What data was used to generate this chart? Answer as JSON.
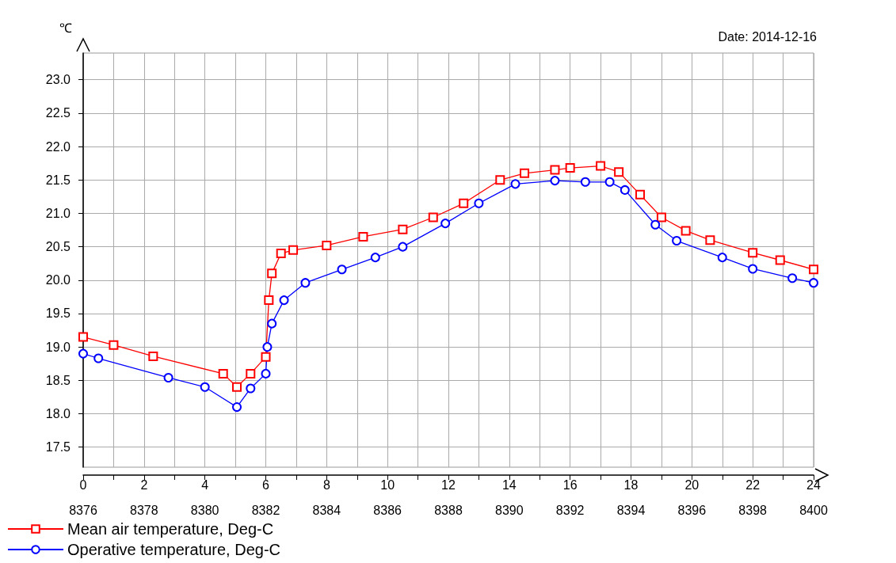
{
  "chart_data": {
    "type": "line",
    "ylabel": "℃",
    "annotations": [
      "Date: 2014-12-16"
    ],
    "xlim": [
      0,
      24
    ],
    "xticks": [
      0,
      {
        "value": 1,
        "label": null
      },
      2,
      {
        "value": 3,
        "label": null
      },
      4,
      {
        "value": 5,
        "label": null
      },
      6,
      {
        "value": 7,
        "label": null
      },
      8,
      {
        "value": 9,
        "label": null
      },
      10,
      {
        "value": 11,
        "label": null
      },
      12,
      {
        "value": 13,
        "label": null
      },
      14,
      {
        "value": 15,
        "label": null
      },
      16,
      {
        "value": 17,
        "label": null
      },
      18,
      {
        "value": 19,
        "label": null
      },
      20,
      {
        "value": 21,
        "label": null
      },
      22,
      {
        "value": 23,
        "label": null
      },
      24
    ],
    "x2lim": [
      8376,
      8400
    ],
    "x2ticks": [
      8376,
      8378,
      8380,
      8382,
      8384,
      8386,
      8388,
      8390,
      8392,
      8394,
      8396,
      8398,
      8400
    ],
    "ylim": [
      17.2,
      23.4
    ],
    "yticks": [
      17.5,
      {
        "value": 18,
        "label": "18.0"
      },
      18.5,
      {
        "value": 19,
        "label": "19.0"
      },
      19.5,
      {
        "value": 20,
        "label": "20.0"
      },
      20.5,
      {
        "value": 21,
        "label": "21.0"
      },
      21.5,
      {
        "value": 22,
        "label": "22.0"
      },
      22.5,
      {
        "value": 23,
        "label": "23.0"
      }
    ],
    "grid": true,
    "legend": "bottom left",
    "line_style": "solid",
    "series": [
      {
        "name": "Mean air temperature, Deg-C",
        "color": "#ff0000",
        "marker": "square",
        "x": [
          0,
          1,
          2.3,
          4.6,
          5.05,
          5.5,
          6.0,
          6.1,
          6.2,
          6.5,
          6.9,
          8,
          9.2,
          10.5,
          11.5,
          12.5,
          13.7,
          14.5,
          15.5,
          16.0,
          17.0,
          17.6,
          18.3,
          19,
          19.8,
          20.6,
          22,
          22.9,
          24
        ],
        "values": [
          19.15,
          19.03,
          18.86,
          18.6,
          18.4,
          18.6,
          18.85,
          19.7,
          20.1,
          20.4,
          20.45,
          20.52,
          20.65,
          20.76,
          20.94,
          21.15,
          21.5,
          21.6,
          21.65,
          21.68,
          21.71,
          21.62,
          21.28,
          20.94,
          20.74,
          20.6,
          20.41,
          20.3,
          20.16
        ]
      },
      {
        "name": "Operative temperature, Deg-C",
        "color": "#0000ff",
        "marker": "circle",
        "x": [
          0,
          0.5,
          2.8,
          4.0,
          5.05,
          5.5,
          6.0,
          6.05,
          6.2,
          6.6,
          7.3,
          8.5,
          9.6,
          10.5,
          11.9,
          13.0,
          14.2,
          15.5,
          16.5,
          17.3,
          17.8,
          18.8,
          19.5,
          21.0,
          22,
          23.3,
          24
        ],
        "values": [
          18.9,
          18.83,
          18.54,
          18.4,
          18.1,
          18.38,
          18.6,
          19.0,
          19.35,
          19.7,
          19.96,
          20.16,
          20.34,
          20.5,
          20.85,
          21.15,
          21.44,
          21.49,
          21.47,
          21.47,
          21.35,
          20.83,
          20.59,
          20.34,
          20.17,
          20.03,
          19.96
        ]
      }
    ]
  }
}
